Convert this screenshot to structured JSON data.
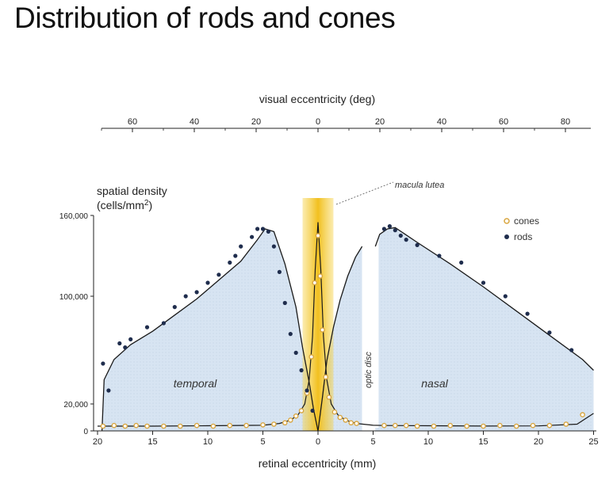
{
  "title": "Distribution of rods and cones",
  "chart_data": {
    "type": "scatter",
    "top_axis": {
      "label": "visual eccentricity (deg)",
      "tick_labels": [
        "60",
        "40",
        "20",
        "0",
        "20",
        "40",
        "60",
        "80"
      ],
      "tick_values": [
        -60,
        -40,
        -20,
        0,
        20,
        40,
        60,
        80
      ]
    },
    "bottom_axis": {
      "label": "retinal eccentricity (mm)",
      "tick_labels": [
        "20",
        "15",
        "10",
        "5",
        "0",
        "5",
        "10",
        "15",
        "20",
        "25"
      ],
      "tick_values": [
        -20,
        -15,
        -10,
        -5,
        0,
        5,
        10,
        15,
        20,
        25
      ]
    },
    "y_axis": {
      "label_line1": "spatial density",
      "label_line2": "(cells/mm",
      "label_sup": "2",
      "label_close": ")",
      "tick_labels": [
        "160,000",
        "100,000",
        "20,000",
        "0"
      ],
      "tick_values": [
        160000,
        100000,
        20000,
        0
      ],
      "ylim": [
        0,
        160000
      ]
    },
    "xlim": [
      -20,
      25
    ],
    "regions": {
      "temporal": "temporal",
      "nasal": "nasal",
      "optic_disc": "optic disc"
    },
    "annotation": "macula lutea",
    "optic_disc_range": [
      4,
      5.5
    ],
    "legend": {
      "position": "top-right"
    },
    "series": [
      {
        "name": "cones",
        "color": "#d9a640",
        "x": [
          -19.5,
          -18.5,
          -17.5,
          -16.5,
          -15.5,
          -14,
          -12.5,
          -11,
          -9.5,
          -8,
          -6.5,
          -5,
          -4,
          -3,
          -2.5,
          -2,
          -1.5,
          -1,
          -0.6,
          -0.3,
          0,
          0.2,
          0.4,
          0.7,
          1,
          1.5,
          2,
          2.5,
          3,
          3.5,
          6,
          7,
          8,
          9,
          10.5,
          12,
          13.5,
          15,
          16.5,
          18,
          19.5,
          21,
          22.5,
          24
        ],
        "y": [
          3500,
          4000,
          3500,
          4000,
          3500,
          3500,
          3500,
          4000,
          3500,
          4000,
          4000,
          4500,
          5000,
          6000,
          8000,
          11000,
          15000,
          28000,
          55000,
          110000,
          145000,
          115000,
          75000,
          40000,
          25000,
          14000,
          10000,
          8000,
          6000,
          5500,
          4000,
          4000,
          4000,
          3500,
          3500,
          4000,
          3500,
          3500,
          4000,
          3500,
          4000,
          4000,
          5000,
          12000
        ]
      },
      {
        "name": "rods",
        "color": "#1f2d4d",
        "x": [
          -19.5,
          -19,
          -18,
          -17.5,
          -17,
          -15.5,
          -14,
          -13,
          -12,
          -11,
          -10,
          -9,
          -8,
          -7.5,
          -7,
          -6,
          -5.5,
          -5,
          -4.5,
          -4,
          -3.5,
          -3,
          -2.5,
          -2,
          -1.5,
          -1,
          -0.5,
          6,
          6.5,
          7,
          7.5,
          8,
          9,
          11,
          13,
          15,
          17,
          19,
          21,
          23
        ],
        "y": [
          50000,
          30000,
          65000,
          62000,
          68000,
          77000,
          80000,
          92000,
          100000,
          103000,
          110000,
          116000,
          125000,
          130000,
          137000,
          144000,
          150000,
          150000,
          148000,
          137000,
          118000,
          95000,
          72000,
          58000,
          45000,
          30000,
          15000,
          150000,
          152000,
          149000,
          145000,
          142000,
          138000,
          130000,
          125000,
          110000,
          100000,
          87000,
          73000,
          60000
        ]
      }
    ],
    "rod_curve": {
      "temporal": {
        "x": [
          -19.6,
          -19.4,
          -18.5,
          -17,
          -15,
          -13,
          -11,
          -9,
          -7,
          -5.5,
          -4.8,
          -4,
          -3,
          -2,
          -1.4,
          -0.8,
          -0.4,
          0
        ],
        "y": [
          0,
          38000,
          53000,
          64000,
          74000,
          86000,
          98000,
          112000,
          126000,
          142000,
          150000,
          148000,
          124000,
          92000,
          62000,
          36000,
          16000,
          0
        ]
      },
      "nasal": {
        "x": [
          0,
          0.4,
          0.8,
          1.4,
          2,
          2.7,
          3.4,
          4
        ],
        "y": [
          0,
          25000,
          52000,
          77000,
          97000,
          115000,
          129000,
          137000
        ]
      },
      "nasal_far": {
        "x": [
          5.2,
          5.6,
          6.3,
          7,
          9,
          12,
          15,
          18,
          21,
          24,
          25
        ],
        "y": [
          137000,
          146000,
          150000,
          151000,
          140000,
          124000,
          107000,
          89000,
          71000,
          53000,
          45000
        ]
      }
    },
    "cone_curve": {
      "x": [
        -20,
        -15,
        -10,
        -5,
        -3.5,
        -2.5,
        -1.8,
        -1.2,
        -0.8,
        -0.5,
        -0.25,
        0,
        0.25,
        0.5,
        0.8,
        1.2,
        1.8,
        2.5,
        3.5,
        5,
        6,
        10,
        15,
        20,
        23.5,
        25
      ],
      "y": [
        3500,
        3500,
        3800,
        4200,
        5500,
        8000,
        12000,
        20000,
        38000,
        70000,
        120000,
        155000,
        120000,
        70000,
        38000,
        20000,
        12000,
        8000,
        5500,
        4200,
        4000,
        3800,
        3600,
        3700,
        5000,
        13000
      ]
    }
  }
}
